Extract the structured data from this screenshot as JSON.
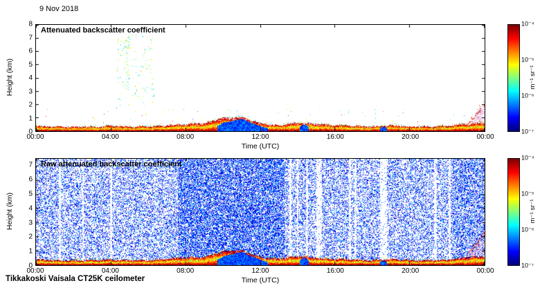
{
  "date_label": "9 Nov 2018",
  "caption": "Tikkakoski Vaisala CT25K ceilometer",
  "colorbar": {
    "ticks": [
      "10⁻⁴",
      "10⁻⁵",
      "10⁻⁶",
      "10⁻⁷"
    ],
    "unit": "m⁻¹ sr⁻¹",
    "scale": "log",
    "colormap": "jet"
  },
  "chart_data": [
    {
      "type": "heatmap",
      "title": "Attenuated backscatter coefficient",
      "xlabel": "Time (UTC)",
      "ylabel": "Height (km)",
      "x_ticks": [
        "00:00",
        "04:00",
        "08:00",
        "12:00",
        "16:00",
        "20:00",
        "00:00"
      ],
      "x_range_hours": [
        0,
        24
      ],
      "ylim_km": [
        0,
        8
      ],
      "y_ticks": [
        8,
        7,
        6,
        5,
        4,
        3,
        2,
        1,
        0
      ],
      "colorbar_ticks": [
        "10⁻⁴",
        "10⁻⁵",
        "10⁻⁶",
        "10⁻⁷"
      ],
      "boundary_layer_top_km": [
        0.35,
        0.3,
        0.28,
        0.3,
        0.35,
        0.3,
        0.3,
        0.4,
        0.5,
        0.55,
        0.95,
        1.0,
        0.55,
        0.4,
        0.6,
        0.5,
        0.4,
        0.35,
        0.3,
        0.4,
        0.3,
        0.3,
        0.35,
        0.5,
        0.6
      ],
      "fog_cloud_periods_hours": [
        [
          9.7,
          12.4
        ],
        [
          14.1,
          14.6
        ],
        [
          18.4,
          18.8
        ]
      ],
      "virga_specks": {
        "hours": [
          4.3,
          6.3
        ],
        "height_km": [
          1.8,
          7.3
        ]
      },
      "evening_plume": {
        "hours": [
          23.15,
          24
        ],
        "top_km": [
          0.5,
          2.0
        ]
      }
    },
    {
      "type": "heatmap",
      "title": "Raw attenuated backscatter coefficient",
      "xlabel": "Time (UTC)",
      "ylabel": "Height (km)",
      "x_ticks": [
        "00:00",
        "04:00",
        "08:00",
        "12:00",
        "16:00",
        "20:00",
        "00:00"
      ],
      "x_range_hours": [
        0,
        24
      ],
      "ylim_km": [
        0,
        7.5
      ],
      "y_ticks": [
        7,
        6,
        5,
        4,
        3,
        2,
        1,
        0
      ],
      "colorbar_ticks": [
        "10⁻⁴",
        "10⁻⁵",
        "10⁻⁶",
        "10⁻⁷"
      ],
      "background": "speckled blue noise",
      "dense_noise_hours": [
        7.6,
        13.3
      ],
      "data_gap_stripes_hours": [
        [
          1.25,
          0.12
        ],
        [
          2.5,
          0.1
        ],
        [
          4.0,
          0.1
        ],
        [
          13.6,
          0.12
        ],
        [
          14.0,
          0.1
        ],
        [
          14.5,
          0.12
        ],
        [
          15.15,
          0.3
        ],
        [
          16.8,
          0.12
        ],
        [
          17.1,
          0.1
        ],
        [
          18.6,
          0.35
        ],
        [
          21.4,
          0.15
        ],
        [
          22.15,
          0.1
        ]
      ],
      "evening_plume": {
        "hours": [
          23.15,
          24
        ],
        "top_km": [
          0.8,
          2.2
        ]
      }
    }
  ]
}
